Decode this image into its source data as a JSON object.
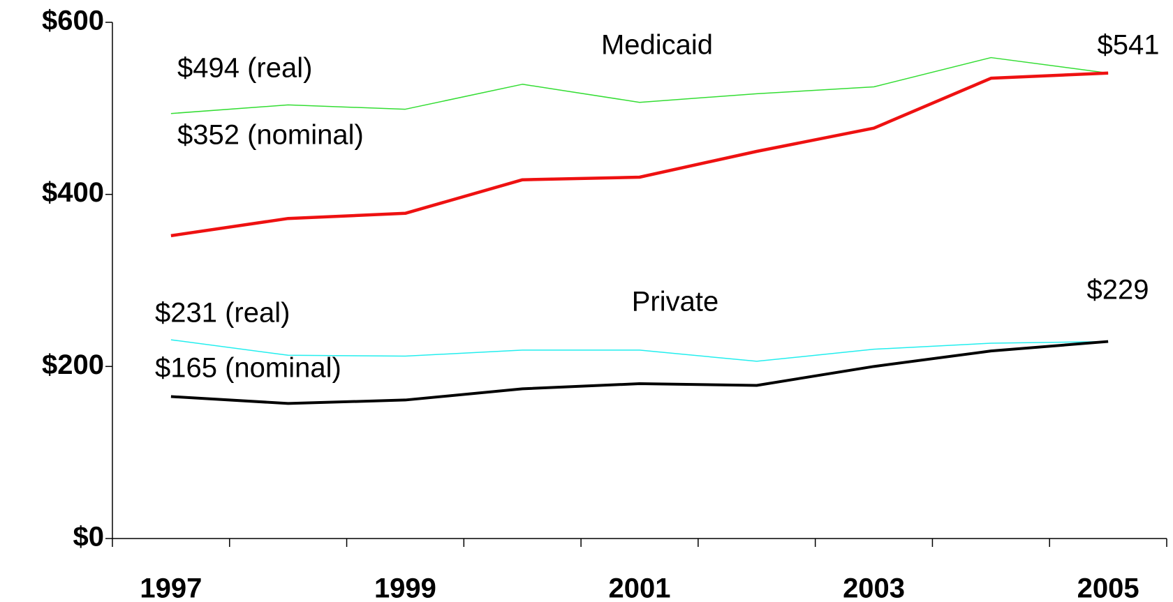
{
  "chart_data": {
    "type": "line",
    "categories": [
      "1997",
      null,
      "1999",
      null,
      "2001",
      null,
      "2003",
      null,
      "2005"
    ],
    "series": [
      {
        "color": "#33dd33",
        "values": [
          494,
          504,
          499,
          528,
          507,
          517,
          525,
          559,
          541
        ]
      },
      {
        "color": "#ee1111",
        "values": [
          352,
          372,
          378,
          417,
          420,
          450,
          477,
          535,
          541
        ]
      },
      {
        "color": "#22eeee",
        "values": [
          231,
          213,
          212,
          219,
          219,
          206,
          220,
          227,
          229
        ]
      },
      {
        "color": "#000000",
        "values": [
          165,
          157,
          161,
          174,
          180,
          178,
          200,
          218,
          229
        ]
      }
    ],
    "annotations": [
      "Medicaid",
      "$494 (real)",
      "$352 (nominal)",
      "$541",
      "Private",
      "$231 (real)",
      "$165 (nominal)",
      "$229"
    ],
    "ylim": [
      0,
      600
    ],
    "yticks": [
      {
        "value": 0,
        "label": "$0"
      },
      {
        "value": 200,
        "label": "$200"
      },
      {
        "value": 400,
        "label": "$400"
      },
      {
        "value": 600,
        "label": "$600"
      }
    ],
    "grid": false
  }
}
